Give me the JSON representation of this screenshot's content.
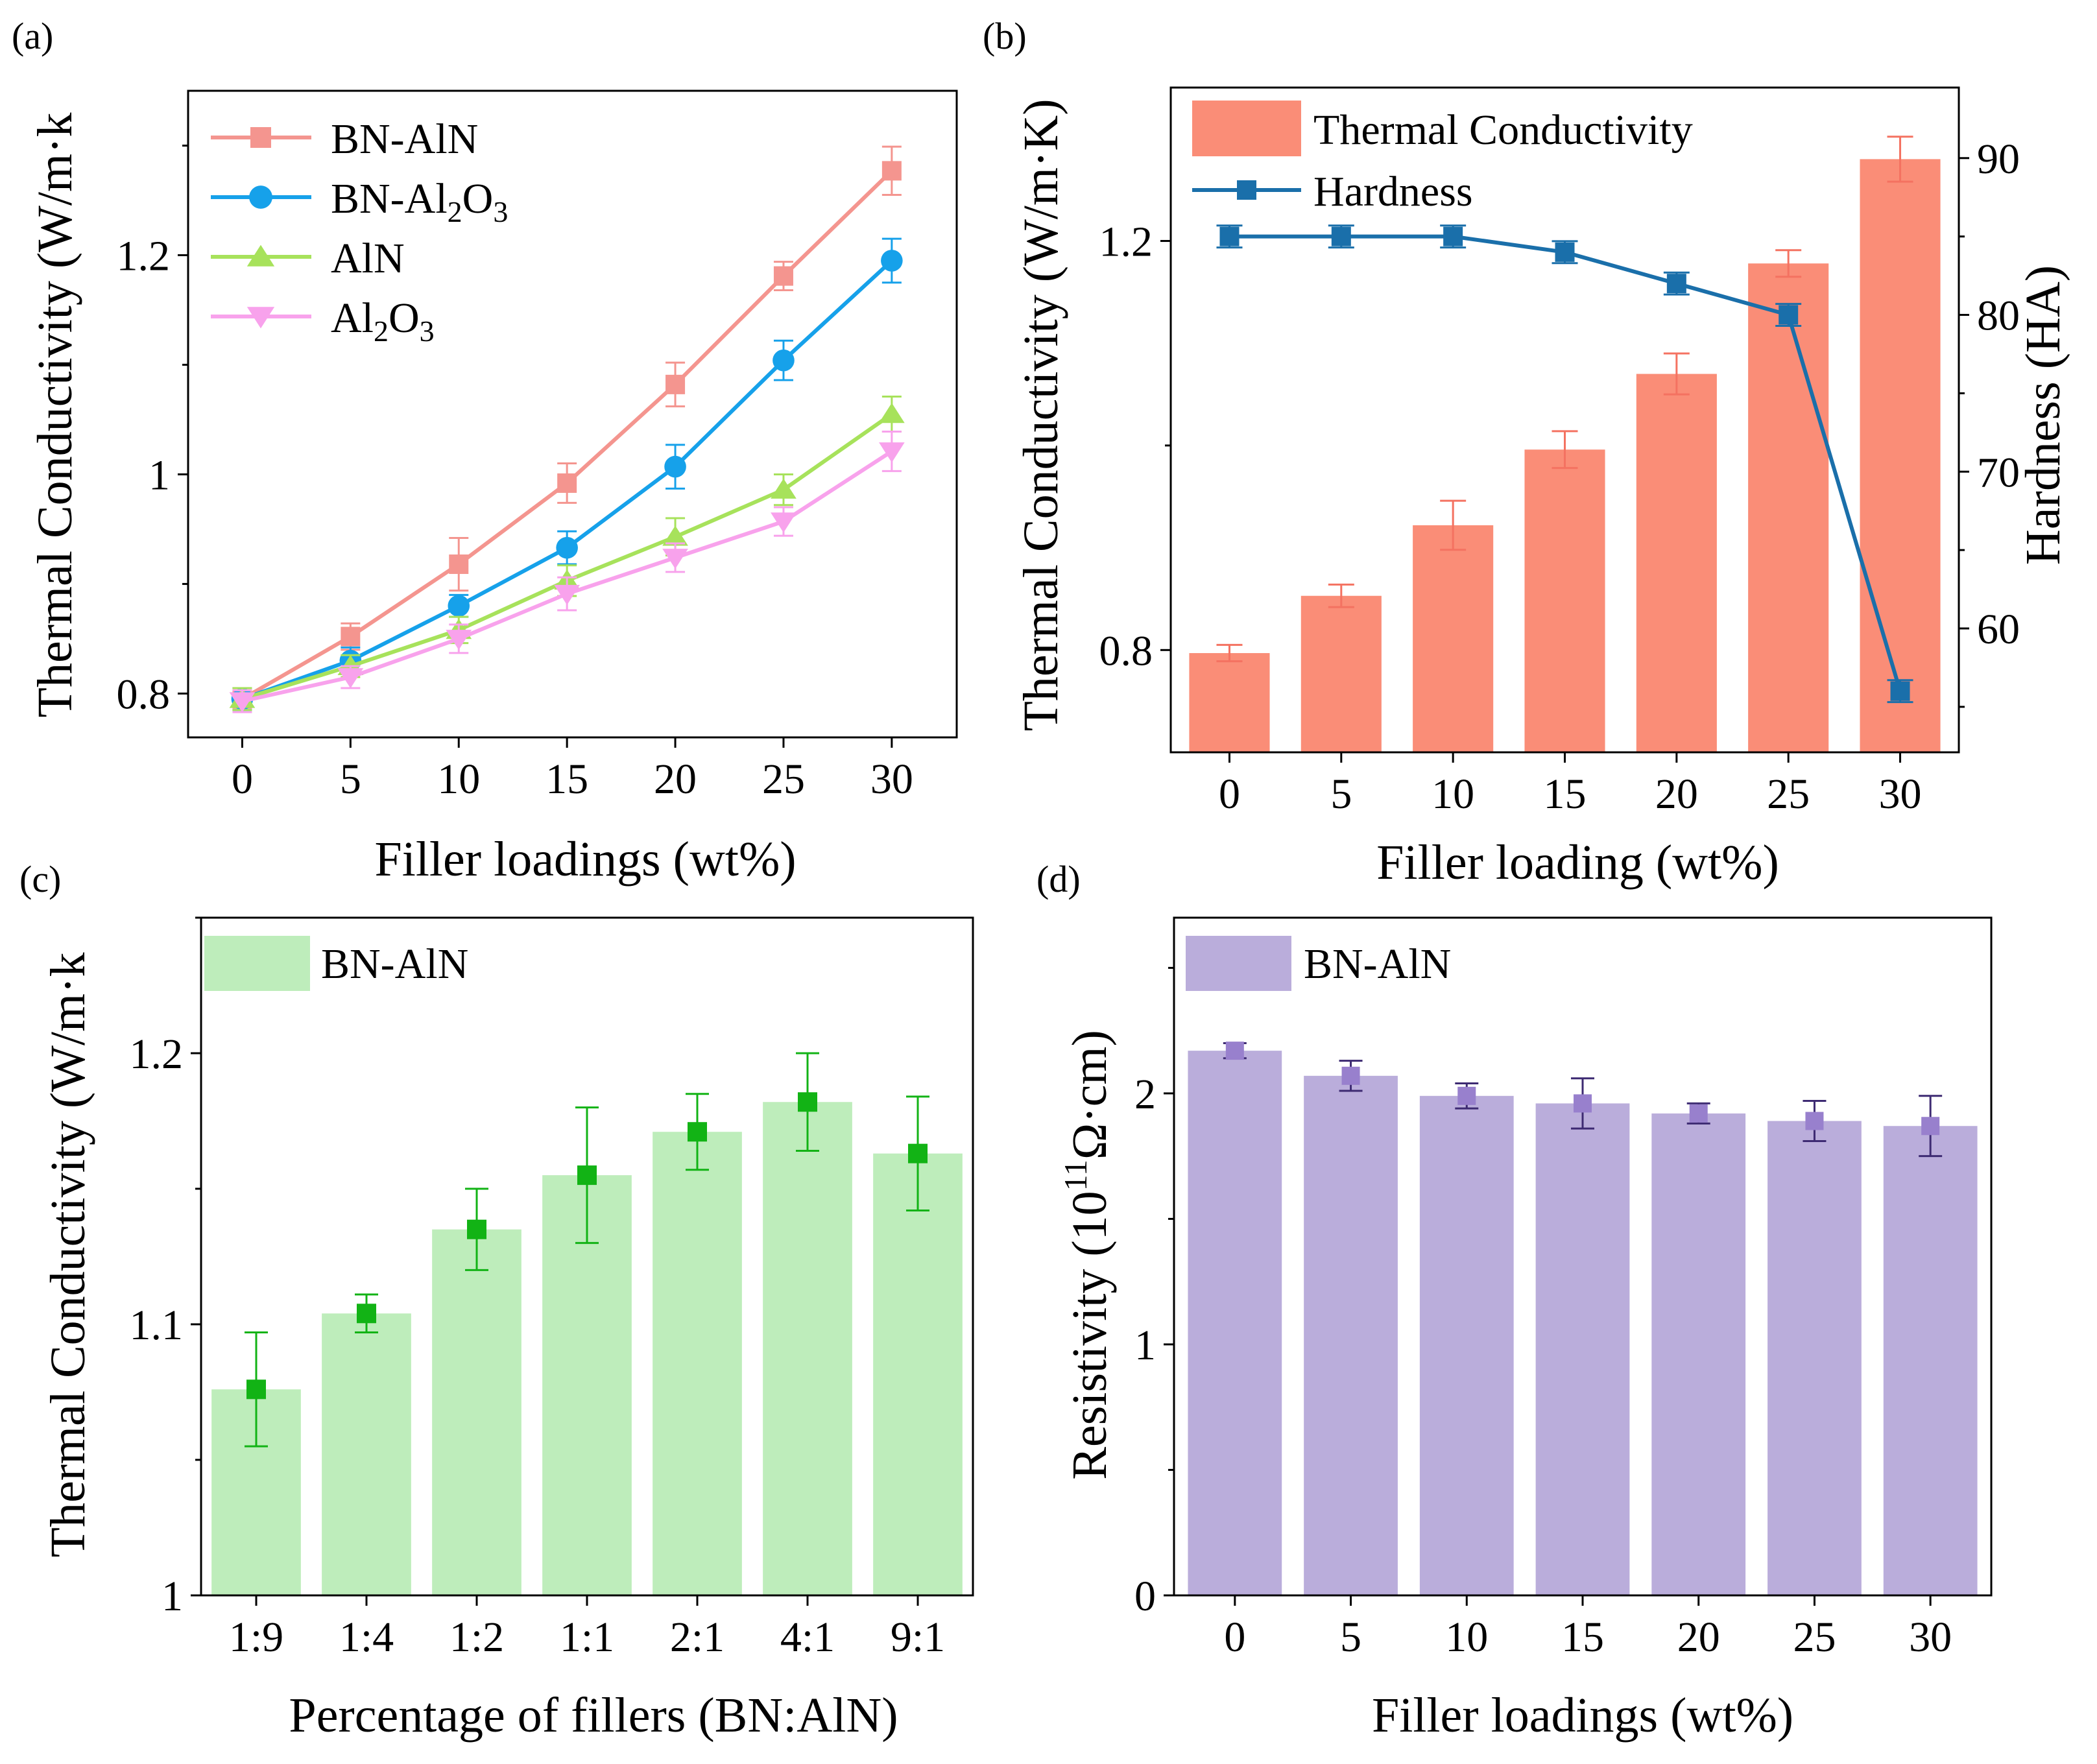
{
  "chart_data": [
    {
      "panel": "(a)",
      "type": "line",
      "xlabel": "Filler loadings (wt%)",
      "ylabel": "Thermal Conductivity (W/m·k",
      "x": [
        0,
        5,
        10,
        15,
        20,
        25,
        30
      ],
      "xlim": [
        -2.5,
        33
      ],
      "ylim": [
        0.76,
        1.35
      ],
      "yticks": [
        0.8,
        1.0,
        1.2
      ],
      "grid": false,
      "legend_position": "top-left",
      "series": [
        {
          "name": "BN-AlN",
          "legend_main": "BN-AlN",
          "legend_sub": "",
          "legend_tail": "",
          "marker": "square",
          "color": "#F4958F",
          "values": [
            0.795,
            0.852,
            0.918,
            0.992,
            1.082,
            1.181,
            1.277
          ],
          "errors": [
            0.01,
            0.012,
            0.024,
            0.018,
            0.02,
            0.013,
            0.022
          ]
        },
        {
          "name": "BN-Al2O3",
          "legend_main": "BN-Al",
          "legend_sub": "2",
          "legend_tail": "O",
          "legend_sub2": "3",
          "marker": "circle",
          "color": "#16A1EA",
          "values": [
            0.795,
            0.83,
            0.88,
            0.933,
            1.007,
            1.104,
            1.195
          ],
          "errors": [
            0.01,
            0.012,
            0.01,
            0.015,
            0.02,
            0.018,
            0.02
          ]
        },
        {
          "name": "AlN",
          "legend_main": "AlN",
          "legend_sub": "",
          "legend_tail": "",
          "marker": "triangle-up",
          "color": "#A7E25B",
          "values": [
            0.795,
            0.825,
            0.858,
            0.903,
            0.943,
            0.986,
            1.055
          ],
          "errors": [
            0.01,
            0.01,
            0.012,
            0.014,
            0.017,
            0.014,
            0.016
          ]
        },
        {
          "name": "Al2O3",
          "legend_main": "Al",
          "legend_sub": "2",
          "legend_tail": "O",
          "legend_sub2": "3",
          "marker": "triangle-down",
          "color": "#F8A2EC",
          "values": [
            0.793,
            0.815,
            0.85,
            0.891,
            0.924,
            0.957,
            1.021
          ],
          "errors": [
            0.01,
            0.01,
            0.013,
            0.015,
            0.013,
            0.013,
            0.018
          ]
        }
      ]
    },
    {
      "panel": "(b)",
      "type": "bar+line",
      "xlabel": "Filler loading (wt%)",
      "ylabel": "Thermal Conductivity (W/m·K)",
      "y2label": "Hardness (HA)",
      "categories": [
        "0",
        "5",
        "10",
        "15",
        "20",
        "25",
        "30"
      ],
      "ylim": [
        0.7,
        1.35
      ],
      "yticks": [
        0.8,
        1.2
      ],
      "y2lim": [
        52.1,
        94.5
      ],
      "y2ticks": [
        60,
        70,
        80,
        90
      ],
      "legend_position": "top-left",
      "series": [
        {
          "name": "Thermal Conductivity",
          "kind": "bar",
          "color": "#FA8D77",
          "error_color": "#F47261",
          "values": [
            0.797,
            0.853,
            0.922,
            0.996,
            1.07,
            1.178,
            1.28
          ],
          "errors": [
            0.008,
            0.011,
            0.024,
            0.018,
            0.02,
            0.013,
            0.022
          ]
        },
        {
          "name": "Hardness",
          "kind": "line",
          "axis": "right",
          "marker": "square",
          "color": "#1A6FAA",
          "values": [
            85,
            85,
            85,
            84,
            82,
            80,
            56
          ],
          "errors": [
            0.7,
            0.7,
            0.7,
            0.7,
            0.7,
            0.7,
            0.7
          ]
        }
      ]
    },
    {
      "panel": "(c)",
      "type": "bar",
      "xlabel": "Percentage of fillers (BN:AlN)",
      "ylabel": "Thermal Conductivity (W/m·k",
      "categories": [
        "1:9",
        "1:4",
        "1:2",
        "1:1",
        "2:1",
        "4:1",
        "9:1"
      ],
      "ylim": [
        1.0,
        1.25
      ],
      "yticks": [
        1.0,
        1.1,
        1.2
      ],
      "legend_position": "top-left",
      "series": [
        {
          "name": "BN-AlN",
          "color": "#BEEDBB",
          "marker_color": "#12B315",
          "values": [
            1.076,
            1.104,
            1.135,
            1.155,
            1.171,
            1.182,
            1.163
          ],
          "errors": [
            0.021,
            0.007,
            0.015,
            0.025,
            0.014,
            0.018,
            0.021
          ]
        }
      ]
    },
    {
      "panel": "(d)",
      "type": "bar",
      "xlabel": "Filler loadings (wt%)",
      "ylabel_main": "Resistivity (10",
      "ylabel_sup": "11",
      "ylabel_tail": "Ω·cm)",
      "categories": [
        "0",
        "5",
        "10",
        "15",
        "20",
        "25",
        "30"
      ],
      "ylim": [
        0,
        2.7
      ],
      "yticks": [
        0,
        1,
        2
      ],
      "legend_position": "top-left",
      "series": [
        {
          "name": "BN-AlN",
          "color": "#BAADDB",
          "marker_color": "#9880CD",
          "error_color": "#3D2A72",
          "values": [
            2.17,
            2.07,
            1.99,
            1.96,
            1.92,
            1.89,
            1.87
          ],
          "errors": [
            0.03,
            0.06,
            0.05,
            0.1,
            0.04,
            0.08,
            0.12
          ]
        }
      ]
    }
  ],
  "labels": {
    "tag_a": "(a)",
    "tag_b": "(b)",
    "tag_c": "(c)",
    "tag_d": "(d)"
  }
}
